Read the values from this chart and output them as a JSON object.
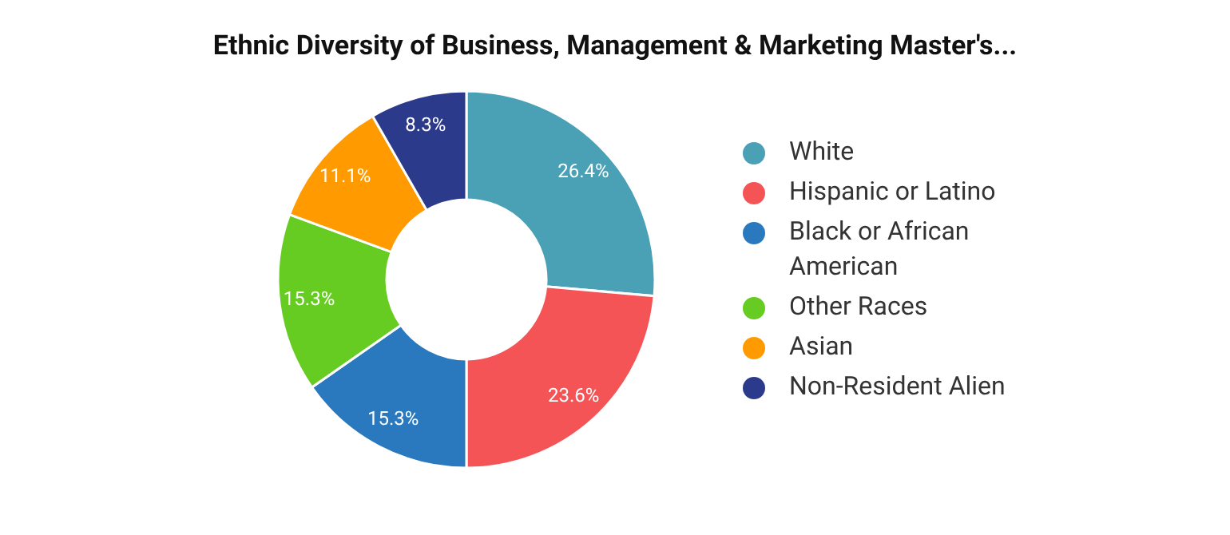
{
  "chart_data": {
    "type": "donut",
    "title": "Ethnic Diversity of Business, Management & Marketing Master's...",
    "categories": [
      "White",
      "Hispanic or Latino",
      "Black or African American",
      "Other Races",
      "Asian",
      "Non-Resident Alien"
    ],
    "values": [
      26.4,
      23.6,
      15.3,
      15.3,
      11.1,
      8.3
    ],
    "value_labels": [
      "26.4%",
      "23.6%",
      "15.3%",
      "15.3%",
      "11.1%",
      "8.3%"
    ],
    "colors": [
      "#4aa0b5",
      "#f55457",
      "#2a78bd",
      "#66cc22",
      "#ff9a00",
      "#2c3a8c"
    ],
    "legend": "right"
  }
}
